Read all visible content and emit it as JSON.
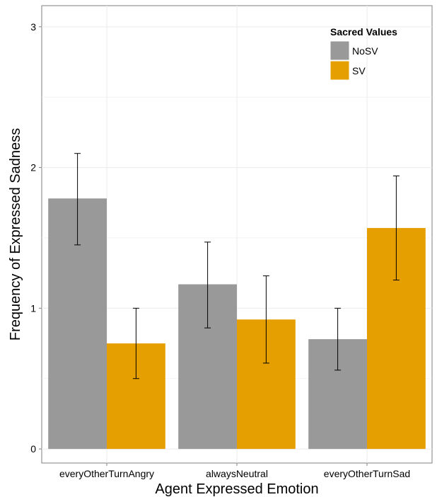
{
  "chart_data": {
    "type": "bar",
    "xlabel": "Agent Expressed Emotion",
    "ylabel": "Frequency of Expressed Sadness",
    "ylim": [
      -0.1,
      3.15
    ],
    "yticks": [
      0,
      1,
      2,
      3
    ],
    "grid": true,
    "legend": {
      "title": "Sacred Values",
      "placement": "top-right"
    },
    "categories": [
      "everyOtherTurnAngry",
      "alwaysNeutral",
      "everyOtherTurnSad"
    ],
    "series": [
      {
        "name": "NoSV",
        "color": "#999999",
        "values": [
          1.78,
          1.17,
          0.78
        ],
        "error_low": [
          1.45,
          0.86,
          0.56
        ],
        "error_high": [
          2.1,
          1.47,
          1.0
        ]
      },
      {
        "name": "SV",
        "color": "#E69F00",
        "values": [
          0.75,
          0.92,
          1.57
        ],
        "error_low": [
          0.5,
          0.61,
          1.2
        ],
        "error_high": [
          1.0,
          1.23,
          1.94
        ]
      }
    ]
  }
}
